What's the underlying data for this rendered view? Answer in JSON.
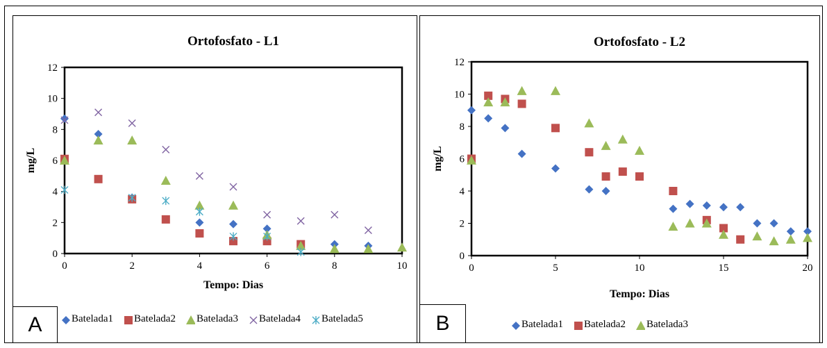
{
  "chart_data": [
    {
      "type": "scatter",
      "title": "Ortofosfato - L1",
      "xlabel": "Tempo: Dias",
      "ylabel": "mg/L",
      "xlim": [
        0,
        10
      ],
      "ylim": [
        0,
        12
      ],
      "xticks": [
        0,
        2,
        4,
        6,
        8,
        10
      ],
      "yticks": [
        0,
        2,
        4,
        6,
        8,
        10,
        12
      ],
      "panel_label": "A",
      "grid": false,
      "legend_position": "bottom",
      "series": [
        {
          "name": "Batelada1",
          "marker": "diamond",
          "color": "#4472C4",
          "x": [
            0,
            1,
            2,
            4,
            5,
            6,
            7,
            8,
            9
          ],
          "y": [
            8.7,
            7.7,
            3.6,
            2.0,
            1.9,
            1.6,
            0.6,
            0.6,
            0.5
          ]
        },
        {
          "name": "Batelada2",
          "marker": "square",
          "color": "#C0504D",
          "x": [
            0,
            1,
            2,
            3,
            4,
            5,
            6,
            7
          ],
          "y": [
            6.1,
            4.8,
            3.5,
            2.2,
            1.3,
            0.8,
            0.8,
            0.6
          ]
        },
        {
          "name": "Batelada3",
          "marker": "triangle",
          "color": "#9BBB59",
          "x": [
            0,
            1,
            2,
            3,
            4,
            5,
            6,
            7,
            8,
            9,
            10
          ],
          "y": [
            6.0,
            7.3,
            7.3,
            4.7,
            3.1,
            3.1,
            1.2,
            0.5,
            0.3,
            0.3,
            0.4
          ]
        },
        {
          "name": "Batelada4",
          "marker": "x",
          "color": "#8064A2",
          "x": [
            0,
            1,
            2,
            3,
            4,
            5,
            6,
            7,
            8,
            9
          ],
          "y": [
            8.6,
            9.1,
            8.4,
            6.7,
            5.0,
            4.3,
            2.5,
            2.1,
            2.5,
            1.5
          ]
        },
        {
          "name": "Batelada5",
          "marker": "asterisk",
          "color": "#4BACC6",
          "x": [
            0,
            2,
            3,
            4,
            5,
            6,
            7
          ],
          "y": [
            4.1,
            3.6,
            3.4,
            2.7,
            1.1,
            1.1,
            0.1
          ]
        }
      ]
    },
    {
      "type": "scatter",
      "title": "Ortofosfato - L2",
      "xlabel": "Tempo: Dias",
      "ylabel": "mg/L",
      "xlim": [
        0,
        20
      ],
      "ylim": [
        0,
        12
      ],
      "xticks": [
        0,
        5,
        10,
        15,
        20
      ],
      "yticks": [
        0,
        2,
        4,
        6,
        8,
        10,
        12
      ],
      "panel_label": "B",
      "grid": false,
      "legend_position": "bottom",
      "series": [
        {
          "name": "Batelada1",
          "marker": "diamond",
          "color": "#4472C4",
          "x": [
            0,
            1,
            2,
            3,
            5,
            7,
            8,
            12,
            13,
            14,
            15,
            16,
            17,
            18,
            19,
            20
          ],
          "y": [
            9.0,
            8.5,
            7.9,
            6.3,
            5.4,
            4.1,
            4.0,
            2.9,
            3.2,
            3.1,
            3.0,
            3.0,
            2.0,
            2.0,
            1.5,
            1.5
          ]
        },
        {
          "name": "Batelada2",
          "marker": "square",
          "color": "#C0504D",
          "x": [
            0,
            1,
            2,
            3,
            5,
            7,
            8,
            9,
            10,
            12,
            14,
            15,
            16
          ],
          "y": [
            6.0,
            9.9,
            9.7,
            9.4,
            7.9,
            6.4,
            4.9,
            5.2,
            4.9,
            4.0,
            2.2,
            1.7,
            1.0
          ]
        },
        {
          "name": "Batelada3",
          "marker": "triangle",
          "color": "#9BBB59",
          "x": [
            0,
            1,
            2,
            3,
            5,
            7,
            8,
            9,
            10,
            12,
            13,
            14,
            15,
            17,
            18,
            19,
            20
          ],
          "y": [
            5.9,
            9.5,
            9.5,
            10.2,
            10.2,
            8.2,
            6.8,
            7.2,
            6.5,
            1.8,
            2.0,
            2.0,
            1.3,
            1.2,
            0.9,
            1.0,
            1.1
          ]
        }
      ]
    }
  ]
}
